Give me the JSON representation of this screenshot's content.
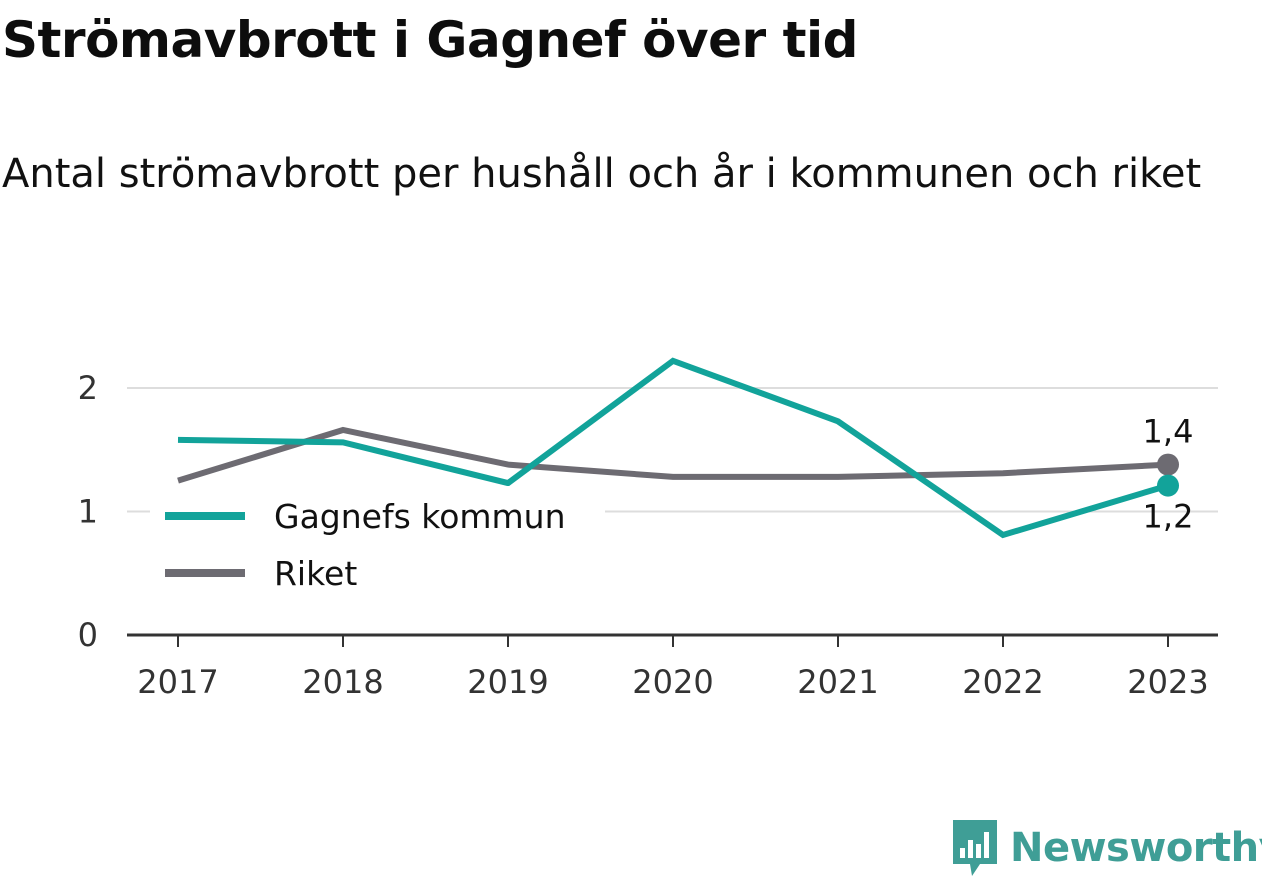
{
  "title": "Strömavbrott i Gagnef över tid",
  "subtitle": "Antal strömavbrott per hushåll och år i kommunen och riket",
  "brand": "Newsworthy",
  "colors": {
    "gagnef": "#12a39a",
    "riket": "#6d6b72",
    "grid": "#dddddd",
    "axis": "#333333",
    "brand": "#3f9e96"
  },
  "chart_data": {
    "type": "line",
    "title": "Strömavbrott i Gagnef över tid",
    "subtitle": "Antal strömavbrott per hushåll och år i kommunen och riket",
    "xlabel": "",
    "ylabel": "",
    "x": [
      "2017",
      "2018",
      "2019",
      "2020",
      "2021",
      "2022",
      "2023"
    ],
    "yticks": [
      "0",
      "1",
      "2"
    ],
    "ylim": [
      0,
      2.2
    ],
    "grid": true,
    "legend_position": "center-left",
    "series": [
      {
        "name": "Gagnefs kommun",
        "values": [
          1.58,
          1.56,
          1.23,
          2.22,
          1.73,
          0.81,
          1.21
        ],
        "end_label": "1,2"
      },
      {
        "name": "Riket",
        "values": [
          1.25,
          1.66,
          1.38,
          1.28,
          1.28,
          1.31,
          1.38
        ],
        "end_label": "1,4"
      }
    ]
  }
}
